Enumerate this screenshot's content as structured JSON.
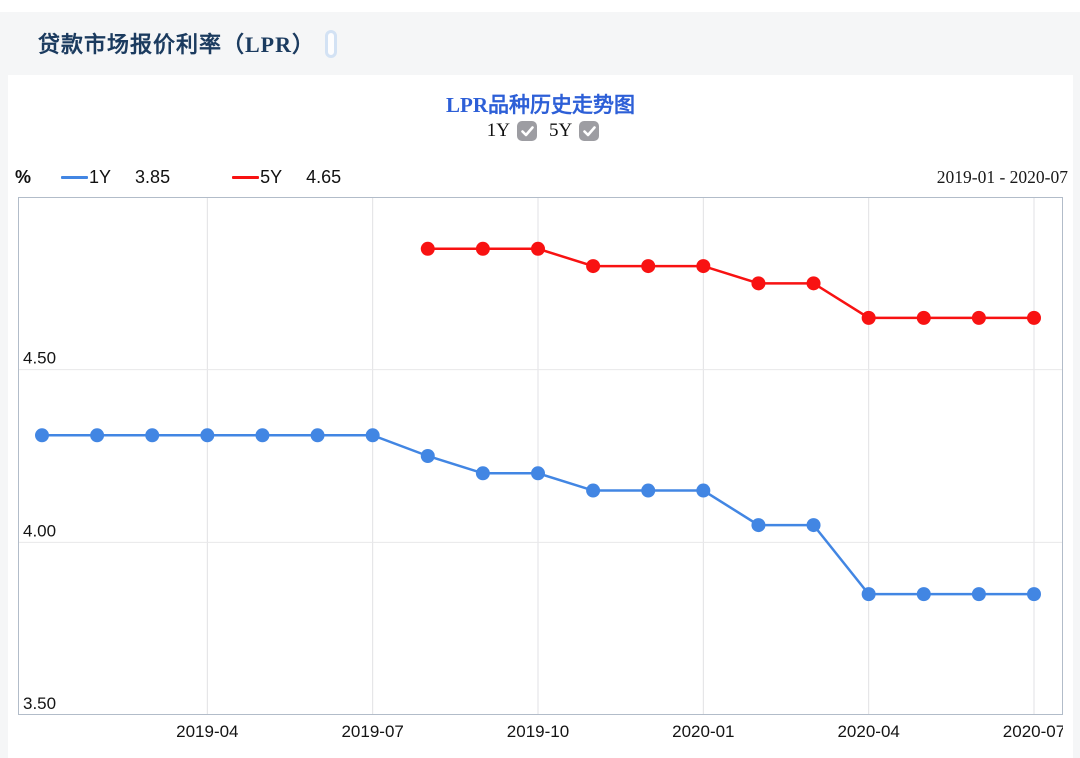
{
  "page": {
    "bg": "#f5f6f7",
    "card_bg": "#ffffff"
  },
  "header": {
    "title": "贷款市场报价利率（LPR）"
  },
  "chart_header": {
    "title": "LPR品种历史走势图",
    "toggles": [
      {
        "label": "1Y",
        "checked": true
      },
      {
        "label": "5Y",
        "checked": true
      }
    ]
  },
  "legend": {
    "unit": "%",
    "items": [
      {
        "label": "1Y",
        "value": "3.85",
        "color": "#4286e3"
      },
      {
        "label": "5Y",
        "value": "4.65",
        "color": "#f81212"
      }
    ],
    "range": "2019-01 - 2020-07"
  },
  "chart_data": {
    "type": "line",
    "title": "LPR品种历史走势图",
    "ylabel": "%",
    "x": [
      "2019-01",
      "2019-02",
      "2019-03",
      "2019-04",
      "2019-05",
      "2019-06",
      "2019-07",
      "2019-08",
      "2019-09",
      "2019-10",
      "2019-11",
      "2019-12",
      "2020-01",
      "2020-02",
      "2020-03",
      "2020-04",
      "2020-05",
      "2020-06",
      "2020-07"
    ],
    "series": [
      {
        "name": "1Y",
        "color": "#4286e3",
        "values": [
          4.31,
          4.31,
          4.31,
          4.31,
          4.31,
          4.31,
          4.31,
          4.25,
          4.2,
          4.2,
          4.15,
          4.15,
          4.15,
          4.05,
          4.05,
          3.85,
          3.85,
          3.85,
          3.85
        ]
      },
      {
        "name": "5Y",
        "color": "#f81212",
        "values": [
          null,
          null,
          null,
          null,
          null,
          null,
          null,
          4.85,
          4.85,
          4.85,
          4.8,
          4.8,
          4.8,
          4.75,
          4.75,
          4.65,
          4.65,
          4.65,
          4.65
        ]
      }
    ],
    "ylim": [
      3.5,
      5.0
    ],
    "yticks": [
      {
        "value": 4.5,
        "label": "4.50"
      },
      {
        "value": 4.0,
        "label": "4.00"
      },
      {
        "value": 3.5,
        "label": "3.50"
      }
    ],
    "xticks": [
      "2019-04",
      "2019-07",
      "2019-10",
      "2020-01",
      "2020-04",
      "2020-07"
    ],
    "grid": true,
    "legend_position": "top-left"
  }
}
